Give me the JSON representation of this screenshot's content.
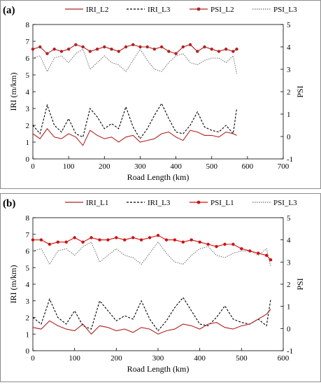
{
  "chart_data": [
    {
      "type": "line",
      "panel_label": "(a)",
      "xlabel": "Road Length (km)",
      "ylabel_left": "IRI (m/km)",
      "ylabel_right": "PSI",
      "xlim": [
        0,
        700
      ],
      "ylim_left": [
        0,
        8
      ],
      "ylim_right": [
        -1,
        5
      ],
      "x_ticks": [
        "0",
        "100",
        "200",
        "300",
        "400",
        "500",
        "600",
        "700"
      ],
      "y_left_ticks": [
        "0",
        "1",
        "2",
        "3",
        "4",
        "5",
        "6",
        "7",
        "8"
      ],
      "y_right_ticks": [
        "-1",
        "0",
        "1",
        "2",
        "3",
        "4",
        "5"
      ],
      "grid": false,
      "legend_position": "top",
      "x": [
        0,
        20,
        40,
        60,
        80,
        100,
        120,
        140,
        160,
        180,
        200,
        220,
        240,
        260,
        280,
        300,
        320,
        340,
        360,
        380,
        400,
        420,
        440,
        460,
        480,
        500,
        520,
        540,
        560,
        570
      ],
      "series": [
        {
          "name": "IRI_L2",
          "axis": "left",
          "color": "#b22222",
          "style": "solid",
          "values": [
            1.5,
            1.2,
            1.8,
            1.3,
            1.2,
            1.5,
            1.3,
            0.8,
            1.7,
            1.4,
            1.2,
            1.3,
            1.0,
            1.3,
            1.4,
            1.0,
            1.1,
            1.2,
            1.5,
            1.6,
            1.3,
            1.1,
            1.7,
            1.6,
            1.4,
            1.4,
            1.3,
            1.6,
            1.5,
            1.4
          ]
        },
        {
          "name": "IRI_L3",
          "axis": "left",
          "color": "#000000",
          "style": "dashed",
          "values": [
            2.0,
            1.5,
            3.2,
            2.0,
            1.6,
            2.4,
            1.5,
            1.3,
            3.0,
            2.5,
            1.8,
            2.1,
            1.8,
            3.1,
            1.9,
            1.2,
            1.8,
            2.6,
            3.3,
            2.4,
            1.6,
            1.5,
            2.0,
            2.8,
            1.9,
            1.7,
            1.6,
            2.0,
            1.5,
            3.0
          ]
        },
        {
          "name": "PSI_L2",
          "axis": "right",
          "color": "#b22222",
          "style": "solid-marker",
          "values": [
            3.9,
            4.0,
            3.7,
            3.9,
            3.8,
            3.9,
            4.1,
            4.0,
            3.8,
            3.9,
            4.0,
            3.9,
            3.8,
            4.0,
            4.1,
            4.0,
            4.0,
            3.9,
            4.0,
            3.8,
            3.7,
            4.0,
            4.1,
            3.8,
            4.0,
            3.9,
            3.8,
            3.9,
            3.8,
            3.9
          ]
        },
        {
          "name": "PSI_L3",
          "axis": "right",
          "color": "#6e6e6e",
          "style": "dotted",
          "values": [
            3.5,
            3.6,
            2.9,
            3.5,
            3.6,
            3.3,
            3.7,
            3.9,
            3.0,
            3.3,
            3.6,
            3.3,
            3.2,
            2.9,
            3.4,
            3.9,
            3.4,
            3.0,
            2.9,
            3.3,
            3.6,
            3.7,
            3.3,
            3.2,
            3.4,
            3.5,
            3.5,
            3.3,
            3.6,
            2.8
          ]
        }
      ],
      "annotations": []
    },
    {
      "type": "line",
      "panel_label": "(b)",
      "xlabel": "Road Length (km)",
      "ylabel_left": "IRI (m/km)",
      "ylabel_right": "PSI",
      "xlim": [
        0,
        600
      ],
      "ylim_left": [
        0,
        8
      ],
      "ylim_right": [
        -1,
        5
      ],
      "x_ticks": [
        "0",
        "100",
        "200",
        "300",
        "400",
        "500",
        "600"
      ],
      "y_left_ticks": [
        "0",
        "1",
        "2",
        "3",
        "4",
        "5",
        "6",
        "7",
        "8"
      ],
      "y_right_ticks": [
        "-1",
        "0",
        "1",
        "2",
        "3",
        "4",
        "5"
      ],
      "grid": false,
      "legend_position": "top",
      "x": [
        0,
        20,
        40,
        60,
        80,
        100,
        120,
        140,
        160,
        180,
        200,
        220,
        240,
        260,
        280,
        300,
        320,
        340,
        360,
        380,
        400,
        420,
        440,
        460,
        480,
        500,
        520,
        540,
        560,
        570
      ],
      "series": [
        {
          "name": "IRI_L1",
          "axis": "left",
          "color": "#b22222",
          "style": "solid",
          "values": [
            1.4,
            1.3,
            1.8,
            1.5,
            1.3,
            1.2,
            1.6,
            1.0,
            1.5,
            1.4,
            1.2,
            1.3,
            1.1,
            1.4,
            1.3,
            1.0,
            1.2,
            1.3,
            1.6,
            1.5,
            1.3,
            1.6,
            1.7,
            1.4,
            1.3,
            1.5,
            1.6,
            1.9,
            2.2,
            2.5
          ]
        },
        {
          "name": "IRI_L3",
          "axis": "left",
          "color": "#000000",
          "style": "dashed",
          "values": [
            2.0,
            1.6,
            3.1,
            2.0,
            1.6,
            2.4,
            1.5,
            1.3,
            3.0,
            2.4,
            1.8,
            2.1,
            1.9,
            3.0,
            1.9,
            1.2,
            1.8,
            2.6,
            3.2,
            2.4,
            1.6,
            1.5,
            2.0,
            2.7,
            1.9,
            1.7,
            1.6,
            1.9,
            1.5,
            3.1
          ]
        },
        {
          "name": "PSI_L1",
          "axis": "right",
          "color": "#d01010",
          "style": "solid-marker",
          "values": [
            4.0,
            4.0,
            3.8,
            3.9,
            3.9,
            4.1,
            3.9,
            4.1,
            4.0,
            4.0,
            4.1,
            4.0,
            4.1,
            4.0,
            4.1,
            4.2,
            4.0,
            4.0,
            3.9,
            4.0,
            3.9,
            3.8,
            3.7,
            3.8,
            3.8,
            3.6,
            3.5,
            3.4,
            3.3,
            3.1
          ]
        },
        {
          "name": "PSI_L3",
          "axis": "right",
          "color": "#6e6e6e",
          "style": "dotted",
          "values": [
            3.5,
            3.6,
            2.9,
            3.5,
            3.6,
            3.3,
            3.7,
            3.9,
            3.0,
            3.3,
            3.6,
            3.3,
            3.2,
            2.9,
            3.4,
            3.9,
            3.4,
            3.0,
            2.9,
            3.3,
            3.6,
            3.7,
            3.3,
            3.2,
            3.4,
            3.5,
            3.5,
            3.3,
            3.6,
            2.8
          ]
        }
      ],
      "annotations": []
    }
  ]
}
